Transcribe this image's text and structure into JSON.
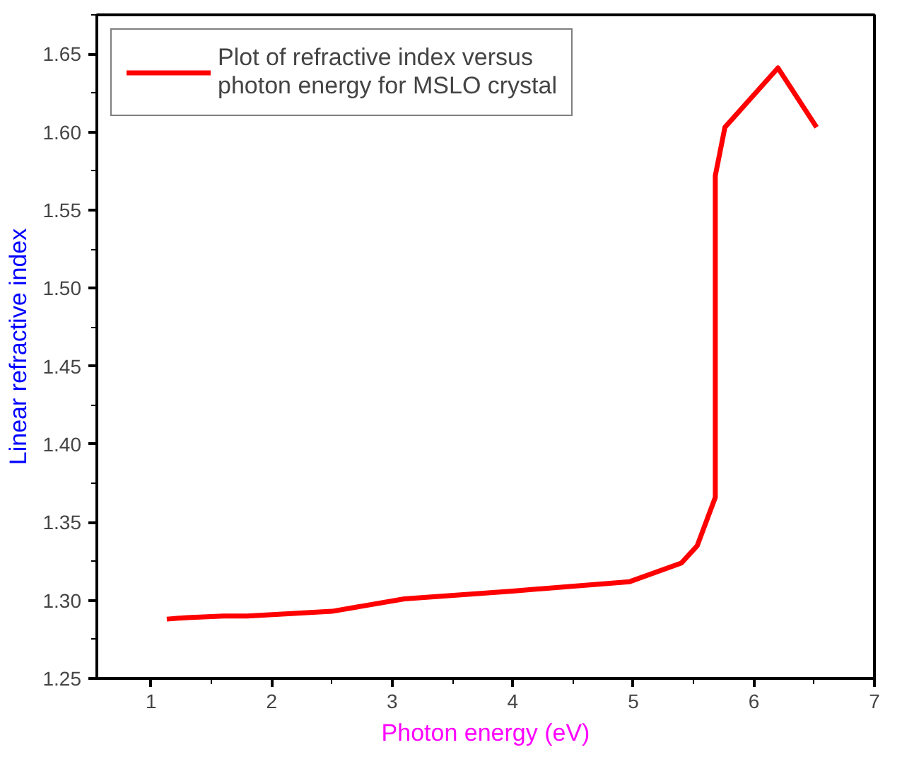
{
  "chart_data": {
    "type": "line",
    "xlabel": "Photon energy (eV)",
    "ylabel": "Linear refractive index",
    "x": [
      1.13,
      1.3,
      1.6,
      1.8,
      2.5,
      3.1,
      4.0,
      4.97,
      5.4,
      5.53,
      5.68,
      5.68,
      5.76,
      6.2,
      6.52
    ],
    "series": [
      {
        "name": "Plot of refractive index versus\nphoton energy for MSLO crystal",
        "color": "#ff0000",
        "values": [
          1.288,
          1.289,
          1.29,
          1.29,
          1.293,
          1.301,
          1.306,
          1.312,
          1.324,
          1.335,
          1.366,
          1.572,
          1.603,
          1.641,
          1.603
        ]
      }
    ],
    "xlim": [
      0.55,
      7
    ],
    "ylim": [
      1.25,
      1.675
    ],
    "xticks": [
      1,
      2,
      3,
      4,
      5,
      6,
      7
    ],
    "yticks": [
      {
        "value": 1.25,
        "label": "1.25"
      },
      {
        "value": 1.3,
        "label": "1.30"
      },
      {
        "value": 1.35,
        "label": "1.35"
      },
      {
        "value": 1.4,
        "label": "1.40"
      },
      {
        "value": 1.45,
        "label": "1.45"
      },
      {
        "value": 1.5,
        "label": "1.50"
      },
      {
        "value": 1.55,
        "label": "1.55"
      },
      {
        "value": 1.6,
        "label": "1.60"
      },
      {
        "value": 1.65,
        "label": "1.65"
      }
    ],
    "grid": false,
    "legend": "top left",
    "marker": "none",
    "line_style": "solid"
  }
}
